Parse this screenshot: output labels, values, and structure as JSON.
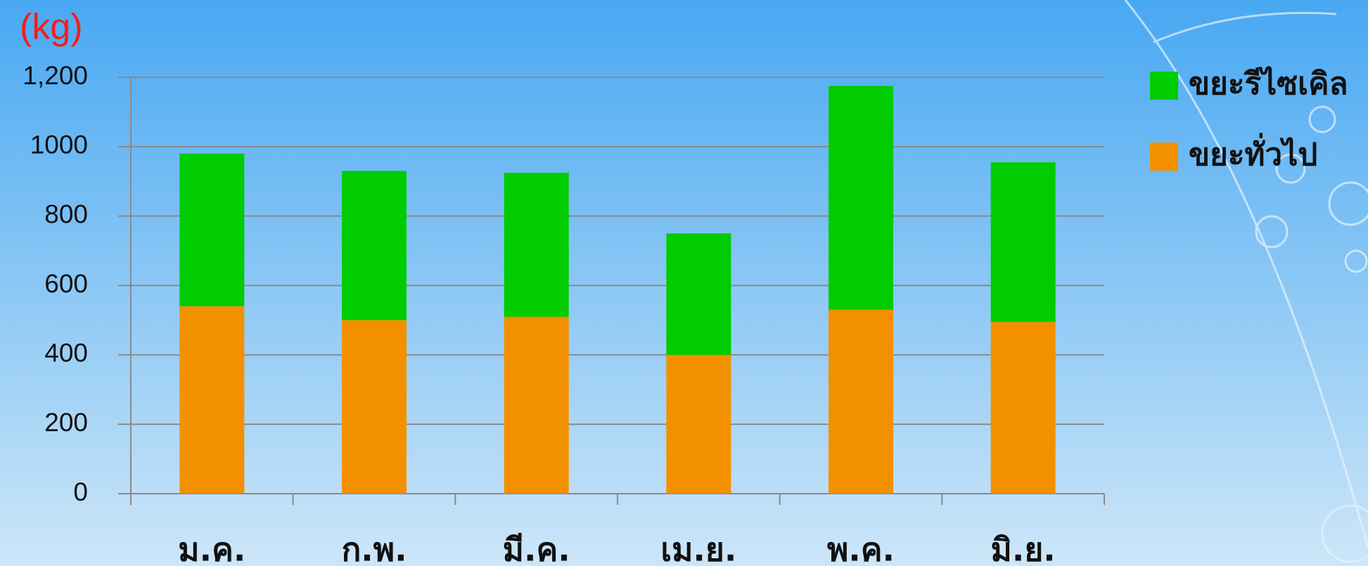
{
  "chart_data": {
    "type": "stacked-bar",
    "unit_label": "(kg)",
    "categories": [
      "ม.ค.",
      "ก.พ.",
      "มี.ค.",
      "เม.ย.",
      "พ.ค.",
      "มิ.ย."
    ],
    "series": [
      {
        "name": "ขยะทั่วไป",
        "color": "#f39000",
        "values": [
          540,
          500,
          510,
          400,
          530,
          495
        ]
      },
      {
        "name": "ขยะรีไซเคิล",
        "color": "#00cc00",
        "values": [
          440,
          430,
          415,
          350,
          645,
          460
        ]
      }
    ],
    "ylim": [
      0,
      1200
    ],
    "yticks": [
      0,
      200,
      400,
      600,
      800,
      1000,
      {
        "value": 1200,
        "label": "1,200"
      }
    ],
    "grid": true
  }
}
